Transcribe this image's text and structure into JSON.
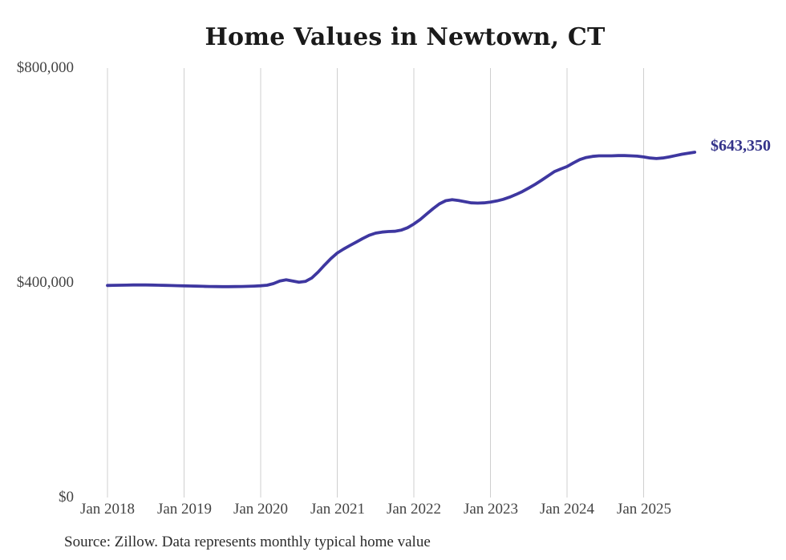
{
  "title": "Home Values in Newtown, CT",
  "source_note": "Source: Zillow. Data represents monthly typical home value",
  "end_label": "$643,350",
  "colors": {
    "line": "#3e37a0",
    "end_label": "#333289",
    "gridline": "#cfcfcf",
    "axis_text": "#444444",
    "title_text": "#1a1a1a",
    "source_text": "#2b2b2b",
    "background": "#ffffff"
  },
  "y_axis": {
    "ticks": [
      {
        "label": "$800,000",
        "value": 800000
      },
      {
        "label": "$400,000",
        "value": 400000
      },
      {
        "label": "$0",
        "value": 0
      }
    ]
  },
  "x_axis": {
    "ticks": [
      "Jan 2018",
      "Jan 2019",
      "Jan 2020",
      "Jan 2021",
      "Jan 2022",
      "Jan 2023",
      "Jan 2024",
      "Jan 2025"
    ]
  },
  "chart_data": {
    "type": "line",
    "title": "Home Values in Newtown, CT",
    "xlabel": "",
    "ylabel": "",
    "ylim": [
      0,
      800000
    ],
    "grid": "vertical-only",
    "legend": "none",
    "x_start_month": "2018-01",
    "x_interval": "month",
    "x_tick_labels": [
      "Jan 2018",
      "Jan 2019",
      "Jan 2020",
      "Jan 2021",
      "Jan 2022",
      "Jan 2023",
      "Jan 2024",
      "Jan 2025"
    ],
    "y_tick_labels": [
      "$0",
      "$400,000",
      "$800,000"
    ],
    "latest_value": 643350,
    "latest_value_label": "$643,350",
    "series": [
      {
        "name": "Monthly typical home value",
        "values": [
          395000,
          395300,
          395500,
          395700,
          395900,
          396000,
          396000,
          395800,
          395500,
          395200,
          394900,
          394600,
          394300,
          394000,
          393700,
          393400,
          393200,
          393000,
          392900,
          392900,
          393000,
          393200,
          393500,
          393900,
          394500,
          395500,
          398500,
          403500,
          405500,
          403500,
          401000,
          402500,
          409000,
          420000,
          433000,
          445000,
          455500,
          463000,
          469500,
          476000,
          482500,
          488500,
          492500,
          494500,
          495500,
          496000,
          498000,
          502500,
          509500,
          518000,
          528000,
          538000,
          547000,
          553000,
          555000,
          553500,
          551000,
          549000,
          548500,
          549000,
          550500,
          552500,
          555500,
          559500,
          564500,
          570000,
          576500,
          583500,
          591000,
          599000,
          607000,
          612000,
          616500,
          623500,
          629500,
          633500,
          635500,
          636500,
          636500,
          636500,
          637000,
          637000,
          636500,
          636000,
          634500,
          632500,
          631500,
          632500,
          634500,
          637000,
          639500,
          641500,
          643350
        ]
      }
    ]
  }
}
